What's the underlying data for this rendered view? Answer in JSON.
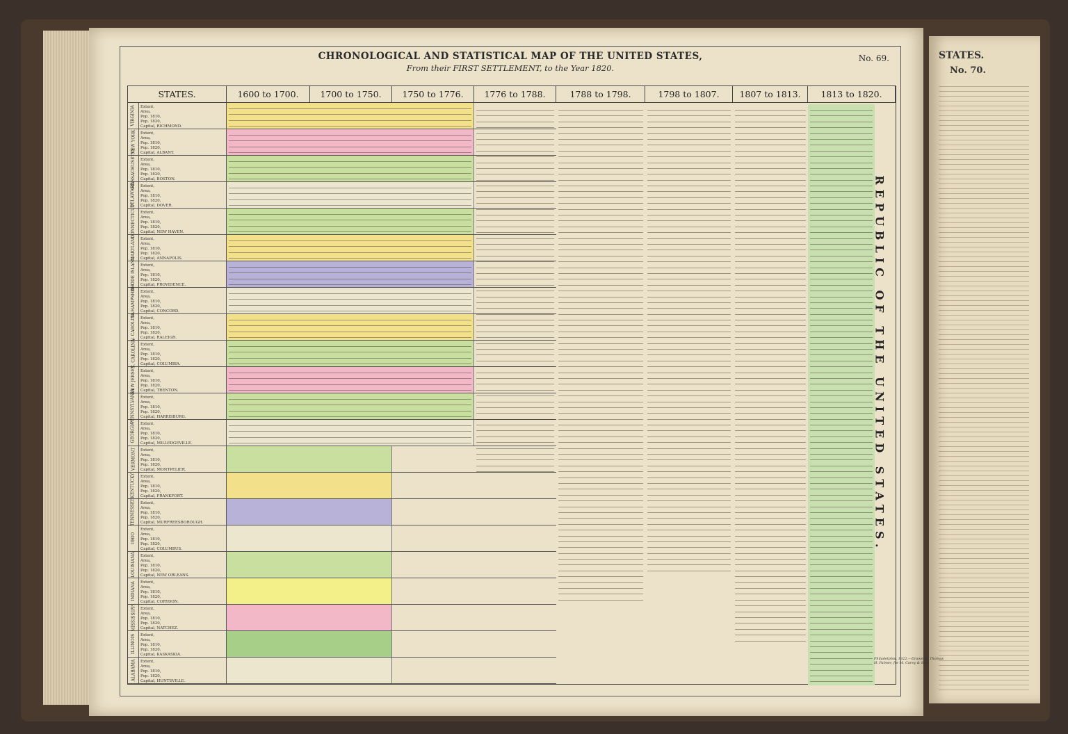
{
  "map": {
    "title": "CHRONOLOGICAL AND STATISTICAL MAP OF THE UNITED STATES,",
    "subtitle": "From their FIRST SETTLEMENT, to the Year 1820.",
    "plate_number": "No. 69.",
    "vertical_title": "REPUBLIC OF THE UNITED STATES.",
    "imprint": "Philadelphia, 1822.—Drawn by Thomas H. Palmer, for M. Carey & Son."
  },
  "next_page": {
    "header": "STATES.",
    "plate_number": "No. 70."
  },
  "columns": [
    "STATES.",
    "1600 to 1700.",
    "1700 to 1750.",
    "1750 to 1776.",
    "1776 to 1788.",
    "1788 to 1798.",
    "1798 to 1807.",
    "1807 to 1813.",
    "1813 to 1820."
  ],
  "stat_labels": [
    "Extent,",
    "Area,",
    "Pop. 1810,",
    "Pop. 1820,",
    "Capital,"
  ],
  "states": [
    {
      "name": "VIRGINIA",
      "capital": "RICHMOND.",
      "color": "#f3e08a"
    },
    {
      "name": "NEW YORK",
      "capital": "ALBANY.",
      "color": "#f2b8c8"
    },
    {
      "name": "MASSACHUSETTS",
      "capital": "BOSTON.",
      "color": "#c8dfa0"
    },
    {
      "name": "DELAWARE",
      "capital": "DOVER.",
      "color": "#ede6cf"
    },
    {
      "name": "CONNECTICUT",
      "capital": "NEW HAVEN.",
      "color": "#c8dfa0"
    },
    {
      "name": "MARYLAND",
      "capital": "ANNAPOLIS.",
      "color": "#f3e08a"
    },
    {
      "name": "RHODE ISLAND",
      "capital": "PROVIDENCE.",
      "color": "#b9b2d8"
    },
    {
      "name": "N. HAMPSHIRE",
      "capital": "CONCORD.",
      "color": "#ede6cf"
    },
    {
      "name": "N. CAROLINA",
      "capital": "RALEIGH.",
      "color": "#f3e08a"
    },
    {
      "name": "S. CAROLINA",
      "capital": "COLUMBIA.",
      "color": "#c8dfa0"
    },
    {
      "name": "NEW JERSEY",
      "capital": "TRENTON.",
      "color": "#f2b8c8"
    },
    {
      "name": "PENNSYLVANIA",
      "capital": "HARRISBURG.",
      "color": "#c8dfa0"
    },
    {
      "name": "GEORGIA",
      "capital": "MILLEDGEVILLE.",
      "color": "#ede6cf"
    },
    {
      "name": "VERMONT",
      "capital": "MONTPELIER.",
      "color": "#c8dfa0"
    },
    {
      "name": "KENTUCKY",
      "capital": "FRANKFORT.",
      "color": "#f3e08a"
    },
    {
      "name": "TENNESSEE",
      "capital": "MURFREESBOROUGH.",
      "color": "#b9b2d8"
    },
    {
      "name": "OHIO",
      "capital": "COLUMBUS.",
      "color": "#ede6cf"
    },
    {
      "name": "LOUISIANA",
      "capital": "NEW ORLEANS.",
      "color": "#c8dfa0"
    },
    {
      "name": "INDIANA",
      "capital": "CORYDON.",
      "color": "#f3f08a"
    },
    {
      "name": "MISSISSIPPI",
      "capital": "NATCHEZ.",
      "color": "#f2b8c8"
    },
    {
      "name": "ILLINOIS",
      "capital": "KASKASKIA.",
      "color": "#a8cf88"
    },
    {
      "name": "ALABAMA",
      "capital": "HUNTSVILLE.",
      "color": "#ede6cf"
    }
  ]
}
